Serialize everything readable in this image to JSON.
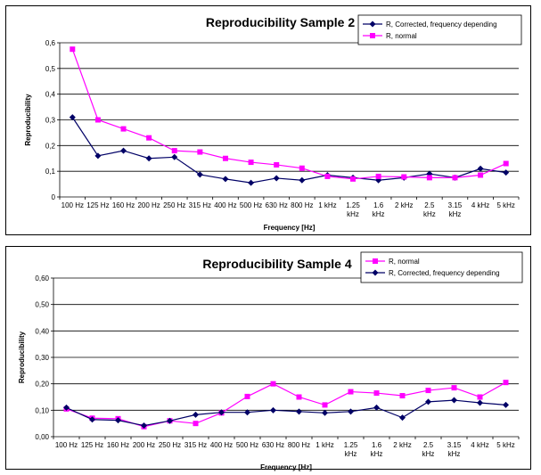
{
  "chart_data": [
    {
      "type": "line",
      "title": "Reproducibility Sample 2",
      "xlabel": "Frequency [Hz]",
      "ylabel": "Reproducibility",
      "ylim": [
        0,
        0.6
      ],
      "yticks": [
        "0",
        "0,1",
        "0,2",
        "0,3",
        "0,4",
        "0,5",
        "0,6"
      ],
      "legend_position": "top-right",
      "categories": [
        [
          "100 Hz"
        ],
        [
          "125 Hz"
        ],
        [
          "160 Hz"
        ],
        [
          "200 Hz"
        ],
        [
          "250 Hz"
        ],
        [
          "315 Hz"
        ],
        [
          "400 Hz"
        ],
        [
          "500 Hz"
        ],
        [
          "630 Hz"
        ],
        [
          "800 Hz"
        ],
        [
          "1 kHz"
        ],
        [
          "1.25",
          "kHz"
        ],
        [
          "1.6",
          "kHz"
        ],
        [
          "2 kHz"
        ],
        [
          "2.5",
          "kHz"
        ],
        [
          "3.15",
          "kHz"
        ],
        [
          "4 kHz"
        ],
        [
          "5 kHz"
        ]
      ],
      "series": [
        {
          "name": "R, Corrected, frequency depending",
          "color": "#000066",
          "marker": "diamond",
          "values": [
            0.31,
            0.16,
            0.18,
            0.15,
            0.155,
            0.087,
            0.07,
            0.055,
            0.073,
            0.065,
            0.085,
            0.075,
            0.065,
            0.075,
            0.09,
            0.075,
            0.11,
            0.095
          ]
        },
        {
          "name": "R, normal",
          "color": "#FF00FF",
          "marker": "square",
          "values": [
            0.575,
            0.3,
            0.265,
            0.23,
            0.18,
            0.175,
            0.15,
            0.135,
            0.125,
            0.112,
            0.08,
            0.07,
            0.08,
            0.078,
            0.075,
            0.075,
            0.085,
            0.13
          ]
        }
      ]
    },
    {
      "type": "line",
      "title": "Reproducibility Sample 4",
      "xlabel": "Frequency [Hz]",
      "ylabel": "Reproducibility",
      "ylim": [
        0,
        0.6
      ],
      "yticks": [
        "0,00",
        "0,10",
        "0,20",
        "0,30",
        "0,40",
        "0,50",
        "0,60"
      ],
      "legend_position": "top-right",
      "categories": [
        [
          "100 Hz"
        ],
        [
          "125 Hz"
        ],
        [
          "160 Hz"
        ],
        [
          "200 Hz"
        ],
        [
          "250 Hz"
        ],
        [
          "315 Hz"
        ],
        [
          "400 Hz"
        ],
        [
          "500 Hz"
        ],
        [
          "630 Hz"
        ],
        [
          "800 Hz"
        ],
        [
          "1 kHz"
        ],
        [
          "1.25",
          "kHz"
        ],
        [
          "1.6",
          "kHz"
        ],
        [
          "2 kHz"
        ],
        [
          "2.5",
          "kHz"
        ],
        [
          "3.15",
          "kHz"
        ],
        [
          "4 kHz"
        ],
        [
          "5 kHz"
        ]
      ],
      "series": [
        {
          "name": "R, normal",
          "color": "#FF00FF",
          "marker": "square",
          "values": [
            0.105,
            0.07,
            0.068,
            0.038,
            0.06,
            0.05,
            0.09,
            0.152,
            0.2,
            0.15,
            0.12,
            0.17,
            0.165,
            0.155,
            0.175,
            0.185,
            0.15,
            0.205
          ]
        },
        {
          "name": "R, Corrected, frequency depending",
          "color": "#000066",
          "marker": "diamond",
          "values": [
            0.11,
            0.065,
            0.062,
            0.042,
            0.06,
            0.083,
            0.092,
            0.092,
            0.1,
            0.095,
            0.09,
            0.095,
            0.11,
            0.072,
            0.132,
            0.138,
            0.128,
            0.12
          ]
        }
      ]
    }
  ]
}
